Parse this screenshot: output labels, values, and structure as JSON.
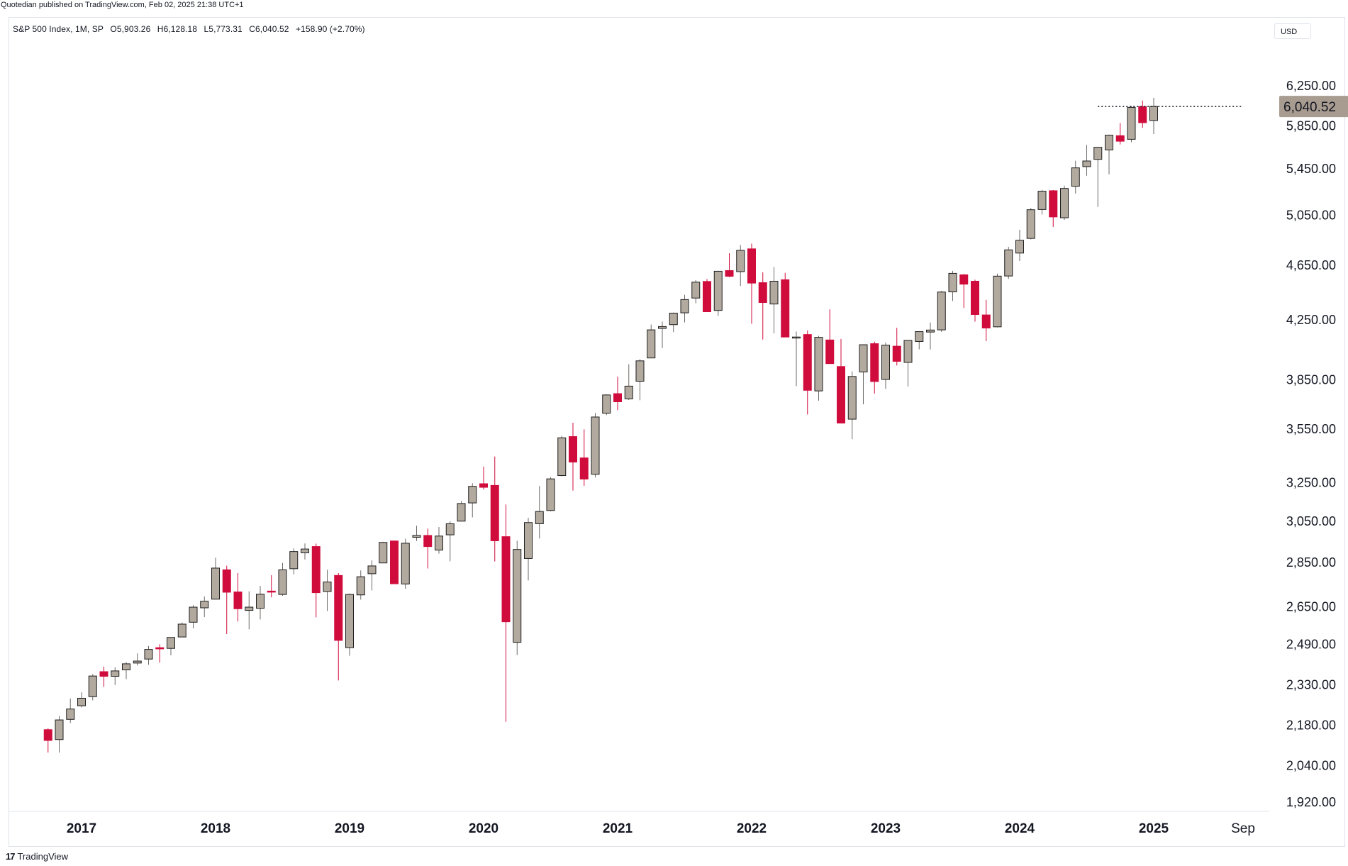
{
  "header": {
    "published_text": "Quotedian published on TradingView.com, Feb 02, 2025 21:38 UTC+1"
  },
  "legend": {
    "symbol": "S&P 500 Index, 1M, SP",
    "open": "O5,903.26",
    "high": "H6,128.18",
    "low": "L5,773.31",
    "close": "C6,040.52",
    "change": "+158.90 (+2.70%)"
  },
  "currency": "USD",
  "branding": {
    "logo_mark": "17",
    "logo_text": "TradingView"
  },
  "colors": {
    "up": "#b3aa9f",
    "down": "#d00c3c",
    "wick_up": "#6d6a66",
    "last_price_bg": "#a89c90"
  },
  "chart_data": {
    "type": "candlestick",
    "title": "S&P 500 Index, 1M, SP",
    "y_scale": "log",
    "ylim": [
      1860,
      6450
    ],
    "y_ticks": [
      1920,
      2040,
      2180,
      2330,
      2490,
      2650,
      2850,
      3050,
      3250,
      3550,
      3850,
      4250,
      4650,
      5050,
      5450,
      5850,
      6250
    ],
    "y_tick_labels": [
      "1,920.00",
      "2,040.00",
      "2,180.00",
      "2,330.00",
      "2,490.00",
      "2,650.00",
      "2,850.00",
      "3,050.00",
      "3,250.00",
      "3,550.00",
      "3,850.00",
      "4,250.00",
      "4,650.00",
      "5,050.00",
      "5,450.00",
      "5,850.00",
      "6,250.00"
    ],
    "x_labels": [
      "2017",
      "2018",
      "2019",
      "2020",
      "2021",
      "2022",
      "2023",
      "2024",
      "2025",
      "Sep"
    ],
    "last_price": 6040.52,
    "last_price_label": "6,040.52",
    "grid": false,
    "candles": [
      {
        "m": "2016-10",
        "o": 2164,
        "h": 2169,
        "l": 2084,
        "c": 2126
      },
      {
        "m": "2016-11",
        "o": 2129,
        "h": 2214,
        "l": 2084,
        "c": 2199
      },
      {
        "m": "2016-12",
        "o": 2201,
        "h": 2278,
        "l": 2188,
        "c": 2239
      },
      {
        "m": "2017-01",
        "o": 2251,
        "h": 2301,
        "l": 2245,
        "c": 2279
      },
      {
        "m": "2017-02",
        "o": 2285,
        "h": 2371,
        "l": 2271,
        "c": 2364
      },
      {
        "m": "2017-03",
        "o": 2381,
        "h": 2401,
        "l": 2322,
        "c": 2363
      },
      {
        "m": "2017-04",
        "o": 2363,
        "h": 2398,
        "l": 2329,
        "c": 2384
      },
      {
        "m": "2017-05",
        "o": 2388,
        "h": 2419,
        "l": 2352,
        "c": 2412
      },
      {
        "m": "2017-06",
        "o": 2415,
        "h": 2454,
        "l": 2405,
        "c": 2423
      },
      {
        "m": "2017-07",
        "o": 2431,
        "h": 2484,
        "l": 2408,
        "c": 2470
      },
      {
        "m": "2017-08",
        "o": 2477,
        "h": 2491,
        "l": 2417,
        "c": 2472
      },
      {
        "m": "2017-09",
        "o": 2474,
        "h": 2519,
        "l": 2446,
        "c": 2519
      },
      {
        "m": "2017-10",
        "o": 2521,
        "h": 2582,
        "l": 2520,
        "c": 2575
      },
      {
        "m": "2017-11",
        "o": 2583,
        "h": 2657,
        "l": 2557,
        "c": 2648
      },
      {
        "m": "2017-12",
        "o": 2645,
        "h": 2695,
        "l": 2605,
        "c": 2674
      },
      {
        "m": "2018-01",
        "o": 2683,
        "h": 2873,
        "l": 2683,
        "c": 2824
      },
      {
        "m": "2018-02",
        "o": 2816,
        "h": 2835,
        "l": 2533,
        "c": 2714
      },
      {
        "m": "2018-03",
        "o": 2715,
        "h": 2801,
        "l": 2586,
        "c": 2641
      },
      {
        "m": "2018-04",
        "o": 2634,
        "h": 2718,
        "l": 2553,
        "c": 2648
      },
      {
        "m": "2018-05",
        "o": 2643,
        "h": 2742,
        "l": 2595,
        "c": 2705
      },
      {
        "m": "2018-06",
        "o": 2719,
        "h": 2791,
        "l": 2691,
        "c": 2718
      },
      {
        "m": "2018-07",
        "o": 2704,
        "h": 2848,
        "l": 2698,
        "c": 2816
      },
      {
        "m": "2018-08",
        "o": 2821,
        "h": 2917,
        "l": 2795,
        "c": 2902
      },
      {
        "m": "2018-09",
        "o": 2896,
        "h": 2941,
        "l": 2864,
        "c": 2914
      },
      {
        "m": "2018-10",
        "o": 2926,
        "h": 2940,
        "l": 2604,
        "c": 2712
      },
      {
        "m": "2018-11",
        "o": 2717,
        "h": 2816,
        "l": 2631,
        "c": 2760
      },
      {
        "m": "2018-12",
        "o": 2790,
        "h": 2801,
        "l": 2347,
        "c": 2507
      },
      {
        "m": "2019-01",
        "o": 2477,
        "h": 2708,
        "l": 2444,
        "c": 2704
      },
      {
        "m": "2019-02",
        "o": 2702,
        "h": 2813,
        "l": 2681,
        "c": 2784
      },
      {
        "m": "2019-03",
        "o": 2798,
        "h": 2860,
        "l": 2722,
        "c": 2834
      },
      {
        "m": "2019-04",
        "o": 2848,
        "h": 2949,
        "l": 2848,
        "c": 2946
      },
      {
        "m": "2019-05",
        "o": 2953,
        "h": 2954,
        "l": 2751,
        "c": 2752
      },
      {
        "m": "2019-06",
        "o": 2751,
        "h": 2964,
        "l": 2729,
        "c": 2942
      },
      {
        "m": "2019-07",
        "o": 2971,
        "h": 3028,
        "l": 2953,
        "c": 2980
      },
      {
        "m": "2019-08",
        "o": 2980,
        "h": 3014,
        "l": 2822,
        "c": 2926
      },
      {
        "m": "2019-09",
        "o": 2909,
        "h": 3022,
        "l": 2892,
        "c": 2977
      },
      {
        "m": "2019-10",
        "o": 2983,
        "h": 3050,
        "l": 2856,
        "c": 3038
      },
      {
        "m": "2019-11",
        "o": 3051,
        "h": 3154,
        "l": 3050,
        "c": 3141
      },
      {
        "m": "2019-12",
        "o": 3144,
        "h": 3248,
        "l": 3070,
        "c": 3231
      },
      {
        "m": "2020-01",
        "o": 3245,
        "h": 3338,
        "l": 3214,
        "c": 3226
      },
      {
        "m": "2020-02",
        "o": 3236,
        "h": 3394,
        "l": 2855,
        "c": 2954
      },
      {
        "m": "2020-03",
        "o": 2974,
        "h": 3136,
        "l": 2192,
        "c": 2585
      },
      {
        "m": "2020-04",
        "o": 2499,
        "h": 2954,
        "l": 2447,
        "c": 2912
      },
      {
        "m": "2020-05",
        "o": 2869,
        "h": 3068,
        "l": 2767,
        "c": 3044
      },
      {
        "m": "2020-06",
        "o": 3038,
        "h": 3233,
        "l": 2965,
        "c": 3100
      },
      {
        "m": "2020-07",
        "o": 3105,
        "h": 3280,
        "l": 3101,
        "c": 3271
      },
      {
        "m": "2020-08",
        "o": 3289,
        "h": 3511,
        "l": 3284,
        "c": 3500
      },
      {
        "m": "2020-09",
        "o": 3507,
        "h": 3588,
        "l": 3209,
        "c": 3363
      },
      {
        "m": "2020-10",
        "o": 3386,
        "h": 3549,
        "l": 3234,
        "c": 3270
      },
      {
        "m": "2020-11",
        "o": 3296,
        "h": 3646,
        "l": 3279,
        "c": 3622
      },
      {
        "m": "2020-12",
        "o": 3645,
        "h": 3760,
        "l": 3633,
        "c": 3756
      },
      {
        "m": "2021-01",
        "o": 3764,
        "h": 3871,
        "l": 3663,
        "c": 3714
      },
      {
        "m": "2021-02",
        "o": 3732,
        "h": 3951,
        "l": 3725,
        "c": 3811
      },
      {
        "m": "2021-03",
        "o": 3842,
        "h": 3984,
        "l": 3723,
        "c": 3973
      },
      {
        "m": "2021-04",
        "o": 3992,
        "h": 4218,
        "l": 3992,
        "c": 4181
      },
      {
        "m": "2021-05",
        "o": 4191,
        "h": 4238,
        "l": 4057,
        "c": 4204
      },
      {
        "m": "2021-06",
        "o": 4217,
        "h": 4302,
        "l": 4165,
        "c": 4298
      },
      {
        "m": "2021-07",
        "o": 4300,
        "h": 4430,
        "l": 4233,
        "c": 4395
      },
      {
        "m": "2021-08",
        "o": 4406,
        "h": 4538,
        "l": 4368,
        "c": 4523
      },
      {
        "m": "2021-09",
        "o": 4528,
        "h": 4546,
        "l": 4306,
        "c": 4308
      },
      {
        "m": "2021-10",
        "o": 4317,
        "h": 4608,
        "l": 4279,
        "c": 4605
      },
      {
        "m": "2021-11",
        "o": 4610,
        "h": 4744,
        "l": 4560,
        "c": 4567
      },
      {
        "m": "2021-12",
        "o": 4602,
        "h": 4808,
        "l": 4495,
        "c": 4766
      },
      {
        "m": "2022-01",
        "o": 4778,
        "h": 4819,
        "l": 4223,
        "c": 4516
      },
      {
        "m": "2022-02",
        "o": 4519,
        "h": 4596,
        "l": 4115,
        "c": 4374
      },
      {
        "m": "2022-03",
        "o": 4363,
        "h": 4637,
        "l": 4157,
        "c": 4530
      },
      {
        "m": "2022-04",
        "o": 4541,
        "h": 4593,
        "l": 4132,
        "c": 4132
      },
      {
        "m": "2022-05",
        "o": 4130,
        "h": 4169,
        "l": 3811,
        "c": 4132
      },
      {
        "m": "2022-06",
        "o": 4149,
        "h": 4177,
        "l": 3637,
        "c": 3785
      },
      {
        "m": "2022-07",
        "o": 3781,
        "h": 4140,
        "l": 3721,
        "c": 4130
      },
      {
        "m": "2022-08",
        "o": 4112,
        "h": 4325,
        "l": 3954,
        "c": 3955
      },
      {
        "m": "2022-09",
        "o": 3936,
        "h": 4119,
        "l": 3585,
        "c": 3586
      },
      {
        "m": "2022-10",
        "o": 3609,
        "h": 3905,
        "l": 3492,
        "c": 3872
      },
      {
        "m": "2022-11",
        "o": 3901,
        "h": 4080,
        "l": 3699,
        "c": 4080
      },
      {
        "m": "2022-12",
        "o": 4087,
        "h": 4101,
        "l": 3764,
        "c": 3840
      },
      {
        "m": "2023-01",
        "o": 3853,
        "h": 4095,
        "l": 3794,
        "c": 4077
      },
      {
        "m": "2023-02",
        "o": 4070,
        "h": 4195,
        "l": 3943,
        "c": 3970
      },
      {
        "m": "2023-03",
        "o": 3963,
        "h": 4110,
        "l": 3809,
        "c": 4109
      },
      {
        "m": "2023-04",
        "o": 4102,
        "h": 4170,
        "l": 4049,
        "c": 4169
      },
      {
        "m": "2023-05",
        "o": 4166,
        "h": 4232,
        "l": 4048,
        "c": 4180
      },
      {
        "m": "2023-06",
        "o": 4181,
        "h": 4458,
        "l": 4167,
        "c": 4450
      },
      {
        "m": "2023-07",
        "o": 4451,
        "h": 4608,
        "l": 4385,
        "c": 4589
      },
      {
        "m": "2023-08",
        "o": 4578,
        "h": 4584,
        "l": 4335,
        "c": 4508
      },
      {
        "m": "2023-09",
        "o": 4530,
        "h": 4541,
        "l": 4238,
        "c": 4288
      },
      {
        "m": "2023-10",
        "o": 4285,
        "h": 4393,
        "l": 4104,
        "c": 4194
      },
      {
        "m": "2023-11",
        "o": 4202,
        "h": 4587,
        "l": 4198,
        "c": 4568
      },
      {
        "m": "2023-12",
        "o": 4569,
        "h": 4794,
        "l": 4547,
        "c": 4770
      },
      {
        "m": "2024-01",
        "o": 4745,
        "h": 4931,
        "l": 4683,
        "c": 4846
      },
      {
        "m": "2024-02",
        "o": 4861,
        "h": 5111,
        "l": 4853,
        "c": 5096
      },
      {
        "m": "2024-03",
        "o": 5098,
        "h": 5265,
        "l": 5056,
        "c": 5254
      },
      {
        "m": "2024-04",
        "o": 5258,
        "h": 5264,
        "l": 4954,
        "c": 5036
      },
      {
        "m": "2024-05",
        "o": 5029,
        "h": 5302,
        "l": 5012,
        "c": 5278
      },
      {
        "m": "2024-06",
        "o": 5297,
        "h": 5524,
        "l": 5234,
        "c": 5460
      },
      {
        "m": "2024-07",
        "o": 5471,
        "h": 5670,
        "l": 5390,
        "c": 5522
      },
      {
        "m": "2024-08",
        "o": 5537,
        "h": 5651,
        "l": 5120,
        "c": 5648
      },
      {
        "m": "2024-09",
        "o": 5624,
        "h": 5768,
        "l": 5402,
        "c": 5762
      },
      {
        "m": "2024-10",
        "o": 5757,
        "h": 5879,
        "l": 5675,
        "c": 5705
      },
      {
        "m": "2024-11",
        "o": 5723,
        "h": 6044,
        "l": 5696,
        "c": 6032
      },
      {
        "m": "2024-12",
        "o": 6040,
        "h": 6100,
        "l": 5832,
        "c": 5882
      },
      {
        "m": "2025-01",
        "o": 5903,
        "h": 6128,
        "l": 5773,
        "c": 6041
      }
    ]
  }
}
